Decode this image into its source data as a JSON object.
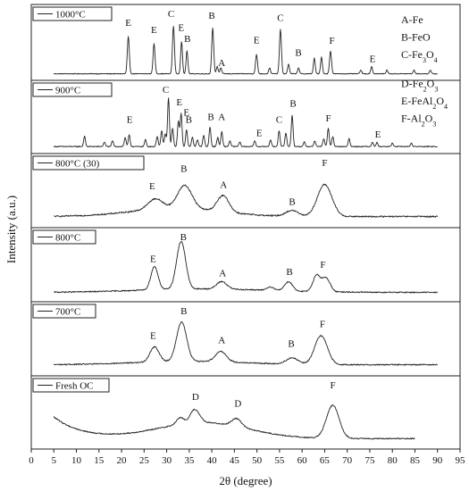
{
  "chart_data": {
    "type": "line",
    "xlabel": "2θ (degree)",
    "ylabel": "Intensity (a.u.)",
    "xlim": [
      0,
      95
    ],
    "xticks": [
      0,
      5,
      10,
      15,
      20,
      25,
      30,
      35,
      40,
      45,
      50,
      55,
      60,
      65,
      70,
      75,
      80,
      85,
      90,
      95
    ],
    "phase_key": [
      {
        "letter": "A",
        "name": "Fe"
      },
      {
        "letter": "B",
        "name": "FeO"
      },
      {
        "letter": "C",
        "name": "Fe3O4"
      },
      {
        "letter": "D",
        "name": "Fe2O3"
      },
      {
        "letter": "E",
        "name": "FeAl2O4"
      },
      {
        "letter": "F",
        "name": "Al2O3"
      }
    ],
    "series": [
      {
        "name": "1000°C",
        "x_range": [
          5,
          90
        ],
        "baseline": 0.05,
        "noise": 0.006,
        "hump": null,
        "peaks": [
          {
            "x": 21.5,
            "h": 0.62,
            "w": 0.22
          },
          {
            "x": 27.2,
            "h": 0.5,
            "w": 0.22
          },
          {
            "x": 31.5,
            "h": 0.8,
            "w": 0.22
          },
          {
            "x": 33.3,
            "h": 0.54,
            "w": 0.2
          },
          {
            "x": 34.5,
            "h": 0.38,
            "w": 0.2
          },
          {
            "x": 40.2,
            "h": 0.76,
            "w": 0.22
          },
          {
            "x": 41.2,
            "h": 0.12,
            "w": 0.2
          },
          {
            "x": 42.0,
            "h": 0.1,
            "w": 0.2
          },
          {
            "x": 49.9,
            "h": 0.32,
            "w": 0.22
          },
          {
            "x": 52.8,
            "h": 0.1,
            "w": 0.2
          },
          {
            "x": 55.2,
            "h": 0.74,
            "w": 0.22
          },
          {
            "x": 57.0,
            "h": 0.16,
            "w": 0.2
          },
          {
            "x": 59.2,
            "h": 0.1,
            "w": 0.2
          },
          {
            "x": 62.7,
            "h": 0.26,
            "w": 0.2
          },
          {
            "x": 64.3,
            "h": 0.28,
            "w": 0.2
          },
          {
            "x": 66.3,
            "h": 0.38,
            "w": 0.22
          },
          {
            "x": 73.0,
            "h": 0.06,
            "w": 0.2
          },
          {
            "x": 75.4,
            "h": 0.12,
            "w": 0.2
          },
          {
            "x": 78.8,
            "h": 0.06,
            "w": 0.2
          },
          {
            "x": 84.8,
            "h": 0.06,
            "w": 0.2
          },
          {
            "x": 88.4,
            "h": 0.06,
            "w": 0.2
          }
        ],
        "labels": [
          {
            "text": "E",
            "x": 21.5,
            "y": 0.85
          },
          {
            "text": "E",
            "x": 27.2,
            "y": 0.73
          },
          {
            "text": "C",
            "x": 31.0,
            "y": 1.0
          },
          {
            "text": "E",
            "x": 33.2,
            "y": 0.77
          },
          {
            "text": "B",
            "x": 34.6,
            "y": 0.58
          },
          {
            "text": "B",
            "x": 40.0,
            "y": 0.97
          },
          {
            "text": "A",
            "x": 42.2,
            "y": 0.18
          },
          {
            "text": "E",
            "x": 49.9,
            "y": 0.56
          },
          {
            "text": "C",
            "x": 55.2,
            "y": 0.93
          },
          {
            "text": "B",
            "x": 59.2,
            "y": 0.35
          },
          {
            "text": "F",
            "x": 66.6,
            "y": 0.55
          },
          {
            "text": "E",
            "x": 75.6,
            "y": 0.25
          }
        ]
      },
      {
        "name": "900°C",
        "x_range": [
          5,
          90
        ],
        "baseline": 0.06,
        "noise": 0.008,
        "hump": null,
        "peaks": [
          {
            "x": 11.8,
            "h": 0.18,
            "w": 0.2
          },
          {
            "x": 16.2,
            "h": 0.08,
            "w": 0.2
          },
          {
            "x": 18.0,
            "h": 0.1,
            "w": 0.2
          },
          {
            "x": 20.8,
            "h": 0.16,
            "w": 0.2
          },
          {
            "x": 21.7,
            "h": 0.2,
            "w": 0.2
          },
          {
            "x": 25.3,
            "h": 0.12,
            "w": 0.2
          },
          {
            "x": 27.9,
            "h": 0.18,
            "w": 0.2
          },
          {
            "x": 28.9,
            "h": 0.28,
            "w": 0.2
          },
          {
            "x": 29.7,
            "h": 0.22,
            "w": 0.2
          },
          {
            "x": 30.4,
            "h": 0.85,
            "w": 0.2
          },
          {
            "x": 31.3,
            "h": 0.32,
            "w": 0.2
          },
          {
            "x": 32.6,
            "h": 0.45,
            "w": 0.2
          },
          {
            "x": 33.2,
            "h": 0.58,
            "w": 0.2
          },
          {
            "x": 34.4,
            "h": 0.3,
            "w": 0.2
          },
          {
            "x": 35.7,
            "h": 0.16,
            "w": 0.2
          },
          {
            "x": 36.8,
            "h": 0.12,
            "w": 0.2
          },
          {
            "x": 38.2,
            "h": 0.2,
            "w": 0.2
          },
          {
            "x": 39.6,
            "h": 0.34,
            "w": 0.2
          },
          {
            "x": 41.3,
            "h": 0.16,
            "w": 0.2
          },
          {
            "x": 42.2,
            "h": 0.26,
            "w": 0.2
          },
          {
            "x": 44.0,
            "h": 0.1,
            "w": 0.2
          },
          {
            "x": 46.2,
            "h": 0.08,
            "w": 0.2
          },
          {
            "x": 49.5,
            "h": 0.1,
            "w": 0.2
          },
          {
            "x": 53.0,
            "h": 0.12,
            "w": 0.2
          },
          {
            "x": 54.9,
            "h": 0.28,
            "w": 0.2
          },
          {
            "x": 56.4,
            "h": 0.24,
            "w": 0.2
          },
          {
            "x": 57.8,
            "h": 0.55,
            "w": 0.2
          },
          {
            "x": 60.5,
            "h": 0.08,
            "w": 0.2
          },
          {
            "x": 62.8,
            "h": 0.1,
            "w": 0.2
          },
          {
            "x": 64.8,
            "h": 0.14,
            "w": 0.2
          },
          {
            "x": 65.8,
            "h": 0.32,
            "w": 0.2
          },
          {
            "x": 66.8,
            "h": 0.18,
            "w": 0.2
          },
          {
            "x": 70.4,
            "h": 0.14,
            "w": 0.2
          },
          {
            "x": 75.6,
            "h": 0.08,
            "w": 0.2
          },
          {
            "x": 76.6,
            "h": 0.07,
            "w": 0.2
          },
          {
            "x": 80.0,
            "h": 0.06,
            "w": 0.2
          },
          {
            "x": 84.2,
            "h": 0.06,
            "w": 0.2
          }
        ],
        "labels": [
          {
            "text": "C",
            "x": 29.8,
            "y": 1.0
          },
          {
            "text": "E",
            "x": 21.8,
            "y": 0.48
          },
          {
            "text": "E",
            "x": 32.8,
            "y": 0.78
          },
          {
            "text": "E",
            "x": 34.4,
            "y": 0.6
          },
          {
            "text": "B",
            "x": 34.9,
            "y": 0.48
          },
          {
            "text": "B",
            "x": 39.8,
            "y": 0.52
          },
          {
            "text": "A",
            "x": 42.2,
            "y": 0.52
          },
          {
            "text": "E",
            "x": 50.5,
            "y": 0.24
          },
          {
            "text": "C",
            "x": 54.9,
            "y": 0.48
          },
          {
            "text": "B",
            "x": 58.0,
            "y": 0.76
          },
          {
            "text": "F",
            "x": 65.8,
            "y": 0.5
          },
          {
            "text": "E",
            "x": 76.8,
            "y": 0.22
          }
        ]
      },
      {
        "name": "800°C (30)",
        "x_range": [
          5,
          90
        ],
        "baseline": 0.13,
        "noise": 0.012,
        "hump": {
          "x": 32,
          "h": 0.14,
          "w": 10
        },
        "peaks": [
          {
            "x": 27.5,
            "h": 0.18,
            "w": 1.6
          },
          {
            "x": 34.0,
            "h": 0.4,
            "w": 1.6
          },
          {
            "x": 42.5,
            "h": 0.28,
            "w": 1.3
          },
          {
            "x": 57.8,
            "h": 0.1,
            "w": 1.4
          },
          {
            "x": 65.0,
            "h": 0.55,
            "w": 1.6
          }
        ],
        "labels": [
          {
            "text": "E",
            "x": 26.8,
            "y": 0.6
          },
          {
            "text": "B",
            "x": 33.8,
            "y": 0.9
          },
          {
            "text": "A",
            "x": 42.6,
            "y": 0.62
          },
          {
            "text": "B",
            "x": 57.8,
            "y": 0.33
          },
          {
            "text": "F",
            "x": 65.0,
            "y": 1.0
          }
        ]
      },
      {
        "name": "800°C",
        "x_range": [
          5,
          90
        ],
        "baseline": 0.1,
        "noise": 0.01,
        "hump": {
          "x": 38,
          "h": 0.06,
          "w": 14
        },
        "peaks": [
          {
            "x": 27.3,
            "h": 0.4,
            "w": 0.8
          },
          {
            "x": 33.2,
            "h": 0.82,
            "w": 1.0
          },
          {
            "x": 42.2,
            "h": 0.13,
            "w": 1.1
          },
          {
            "x": 53.0,
            "h": 0.06,
            "w": 0.8
          },
          {
            "x": 57.0,
            "h": 0.16,
            "w": 0.9
          },
          {
            "x": 63.2,
            "h": 0.28,
            "w": 0.8
          },
          {
            "x": 65.3,
            "h": 0.24,
            "w": 0.9
          }
        ],
        "labels": [
          {
            "text": "E",
            "x": 27.0,
            "y": 0.62
          },
          {
            "text": "B",
            "x": 33.7,
            "y": 1.0
          },
          {
            "text": "A",
            "x": 42.4,
            "y": 0.38
          },
          {
            "text": "B",
            "x": 57.2,
            "y": 0.4
          },
          {
            "text": "F",
            "x": 64.6,
            "y": 0.52
          }
        ]
      },
      {
        "name": "700°C",
        "x_range": [
          5,
          90
        ],
        "baseline": 0.13,
        "noise": 0.01,
        "hump": {
          "x": 35,
          "h": 0.06,
          "w": 12
        },
        "peaks": [
          {
            "x": 27.3,
            "h": 0.26,
            "w": 1.0
          },
          {
            "x": 33.3,
            "h": 0.68,
            "w": 1.1
          },
          {
            "x": 42.0,
            "h": 0.18,
            "w": 1.2
          },
          {
            "x": 57.8,
            "h": 0.11,
            "w": 1.3
          },
          {
            "x": 64.2,
            "h": 0.5,
            "w": 1.4
          }
        ],
        "labels": [
          {
            "text": "E",
            "x": 27.0,
            "y": 0.58
          },
          {
            "text": "B",
            "x": 33.8,
            "y": 1.0
          },
          {
            "text": "A",
            "x": 42.2,
            "y": 0.5
          },
          {
            "text": "B",
            "x": 57.6,
            "y": 0.44
          },
          {
            "text": "F",
            "x": 64.5,
            "y": 0.78
          }
        ]
      },
      {
        "name": "Fresh OC",
        "x_range": [
          5,
          85
        ],
        "baseline": 0.12,
        "noise": 0.01,
        "hump": {
          "x": 38,
          "h": 0.28,
          "w": 10
        },
        "start_decay": {
          "h": 0.38,
          "w": 6
        },
        "peaks": [
          {
            "x": 33.0,
            "h": 0.12,
            "w": 0.8
          },
          {
            "x": 35.8,
            "h": 0.18,
            "w": 0.8
          },
          {
            "x": 37.0,
            "h": 0.12,
            "w": 0.8
          },
          {
            "x": 45.5,
            "h": 0.14,
            "w": 1.1
          },
          {
            "x": 66.8,
            "h": 0.58,
            "w": 1.4
          }
        ],
        "labels": [
          {
            "text": "D",
            "x": 36.4,
            "y": 0.8
          },
          {
            "text": "D",
            "x": 45.8,
            "y": 0.68
          },
          {
            "text": "F",
            "x": 66.8,
            "y": 1.0
          }
        ]
      }
    ]
  }
}
